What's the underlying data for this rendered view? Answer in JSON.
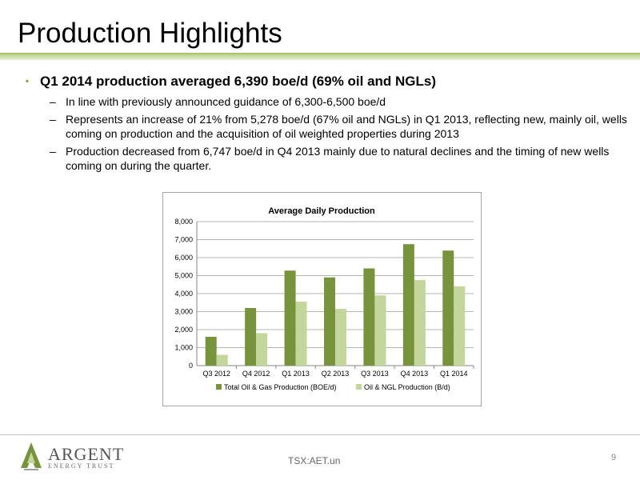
{
  "header": {
    "title": "Production Highlights"
  },
  "content": {
    "main_bullet": "Q1 2014 production averaged 6,390 boe/d (69% oil and NGLs)",
    "sub_bullets": [
      "In line with previously announced guidance of 6,300-6,500 boe/d",
      "Represents an increase of 21% from 5,278 boe/d (67% oil and NGLs) in Q1 2013, reflecting new, mainly oil, wells coming on production and the acquisition of oil weighted properties during 2013",
      "Production decreased from 6,747 boe/d in Q4 2013 mainly due to natural declines and the timing of new wells coming on during the quarter."
    ]
  },
  "chart_data": {
    "type": "bar",
    "title": "Average Daily Production",
    "categories": [
      "Q3 2012",
      "Q4 2012",
      "Q1 2013",
      "Q2 2013",
      "Q3 2013",
      "Q4 2013",
      "Q1 2014"
    ],
    "series": [
      {
        "name": "Total Oil & Gas Production (BOE/d)",
        "values": [
          1600,
          3200,
          5278,
          4900,
          5400,
          6747,
          6390
        ],
        "color": "#77933c"
      },
      {
        "name": "Oil & NGL Production (B/d)",
        "values": [
          600,
          1800,
          3550,
          3150,
          3900,
          4750,
          4400
        ],
        "color": "#c3d69b"
      }
    ],
    "yticks": [
      "0",
      "1,000",
      "2,000",
      "3,000",
      "4,000",
      "5,000",
      "6,000",
      "7,000",
      "8,000"
    ],
    "ylim": [
      0,
      8000
    ],
    "grid": true,
    "legend_position": "bottom"
  },
  "footer": {
    "logo_name": "ARGENT",
    "logo_sub": "ENERGY TRUST",
    "ticker": "TSX:AET.un",
    "page_number": "9"
  }
}
